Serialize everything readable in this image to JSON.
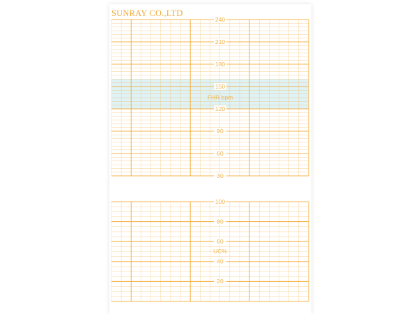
{
  "company": "SUNRAY CO.,LTD",
  "fhr": {
    "unit_label": "FHR bpm",
    "ticks": [
      "240",
      "210",
      "180",
      "150",
      "120",
      "90",
      "60",
      "30"
    ],
    "normal_band": [
      120,
      160
    ]
  },
  "uc": {
    "unit_label": "UC%",
    "ticks": [
      "100",
      "80",
      "60",
      "40",
      "20"
    ]
  },
  "colors": {
    "grid": "#f5b042",
    "band": "#dff2f5",
    "label": "#f0b550"
  }
}
